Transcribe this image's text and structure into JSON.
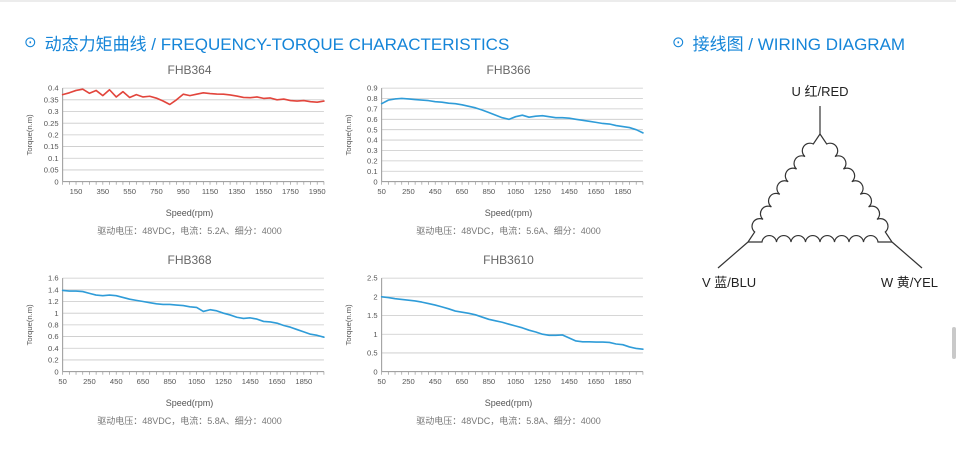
{
  "headings": {
    "bullet": "⊙",
    "left": "动态力矩曲线 / FREQUENCY-TORQUE CHARACTERISTICS",
    "right": "接线图 / WIRING DIAGRAM",
    "accent_color": "#1585d8"
  },
  "chart_data": [
    {
      "type": "line",
      "title": "FHB364",
      "xlabel": "Speed(rpm)",
      "ylabel": "Torque(n.m)",
      "caption": "驱动电压：48VDC，电流：5.2A、细分：4000",
      "line_color": "#e2453c",
      "grid": true,
      "legend": "none",
      "xlim": [
        50,
        2000
      ],
      "ylim": [
        0,
        0.4
      ],
      "ytick_step": 0.05,
      "xtick_first": 150,
      "xtick_step": 200,
      "xminor_step": 50,
      "x_start": 50,
      "x_step": 50,
      "values": [
        0.372,
        0.38,
        0.39,
        0.395,
        0.378,
        0.39,
        0.368,
        0.393,
        0.362,
        0.385,
        0.36,
        0.372,
        0.362,
        0.365,
        0.357,
        0.345,
        0.33,
        0.35,
        0.374,
        0.368,
        0.374,
        0.38,
        0.377,
        0.375,
        0.374,
        0.371,
        0.366,
        0.36,
        0.359,
        0.362,
        0.356,
        0.358,
        0.35,
        0.353,
        0.347,
        0.345,
        0.347,
        0.342,
        0.34,
        0.345
      ]
    },
    {
      "type": "line",
      "title": "FHB366",
      "xlabel": "Speed(rpm)",
      "ylabel": "Torque(n.m)",
      "caption": "驱动电压：48VDC，电流：5.6A、细分：4000",
      "line_color": "#2f9cd8",
      "grid": true,
      "legend": "none",
      "xlim": [
        50,
        2000
      ],
      "ylim": [
        0,
        0.9
      ],
      "ytick_step": 0.1,
      "xtick_first": 50,
      "xtick_step": 200,
      "xminor_step": 50,
      "x_start": 50,
      "x_step": 50,
      "values": [
        0.75,
        0.785,
        0.795,
        0.8,
        0.795,
        0.79,
        0.785,
        0.78,
        0.77,
        0.765,
        0.755,
        0.75,
        0.74,
        0.725,
        0.71,
        0.69,
        0.665,
        0.64,
        0.615,
        0.6,
        0.625,
        0.64,
        0.62,
        0.63,
        0.635,
        0.625,
        0.615,
        0.615,
        0.61,
        0.6,
        0.59,
        0.58,
        0.57,
        0.56,
        0.555,
        0.54,
        0.53,
        0.52,
        0.5,
        0.47
      ]
    },
    {
      "type": "line",
      "title": "FHB368",
      "xlabel": "Speed(rpm)",
      "ylabel": "Torque(n.m)",
      "caption": "驱动电压：48VDC，电流：5.8A、细分：4000",
      "line_color": "#2f9cd8",
      "grid": true,
      "legend": "none",
      "xlim": [
        50,
        2000
      ],
      "ylim": [
        0,
        1.6
      ],
      "ytick_step": 0.2,
      "xtick_first": 50,
      "xtick_step": 200,
      "xminor_step": 50,
      "x_start": 50,
      "x_step": 50,
      "values": [
        1.39,
        1.38,
        1.38,
        1.37,
        1.34,
        1.31,
        1.3,
        1.31,
        1.3,
        1.27,
        1.24,
        1.22,
        1.2,
        1.18,
        1.16,
        1.15,
        1.15,
        1.14,
        1.13,
        1.11,
        1.1,
        1.03,
        1.06,
        1.04,
        1.0,
        0.97,
        0.93,
        0.91,
        0.92,
        0.9,
        0.86,
        0.85,
        0.83,
        0.79,
        0.76,
        0.72,
        0.68,
        0.64,
        0.62,
        0.59
      ]
    },
    {
      "type": "line",
      "title": "FHB3610",
      "xlabel": "Speed(rpm)",
      "ylabel": "Torque(n.m)",
      "caption": "驱动电压：48VDC，电流：5.8A、细分：4000",
      "line_color": "#2f9cd8",
      "grid": true,
      "legend": "none",
      "xlim": [
        50,
        2000
      ],
      "ylim": [
        0,
        2.5
      ],
      "ytick_step": 0.5,
      "xtick_first": 50,
      "xtick_step": 200,
      "xminor_step": 50,
      "x_start": 50,
      "x_step": 50,
      "values": [
        2.0,
        1.98,
        1.95,
        1.93,
        1.91,
        1.89,
        1.86,
        1.82,
        1.78,
        1.73,
        1.68,
        1.62,
        1.59,
        1.56,
        1.52,
        1.46,
        1.4,
        1.36,
        1.32,
        1.27,
        1.22,
        1.17,
        1.11,
        1.06,
        1.0,
        0.97,
        0.97,
        0.98,
        0.9,
        0.82,
        0.8,
        0.8,
        0.79,
        0.79,
        0.78,
        0.74,
        0.72,
        0.66,
        0.62,
        0.6
      ]
    }
  ],
  "wiring": {
    "label_u": "U 红/RED",
    "label_v": "V 蓝/BLU",
    "label_w": "W 黄/YEL"
  }
}
